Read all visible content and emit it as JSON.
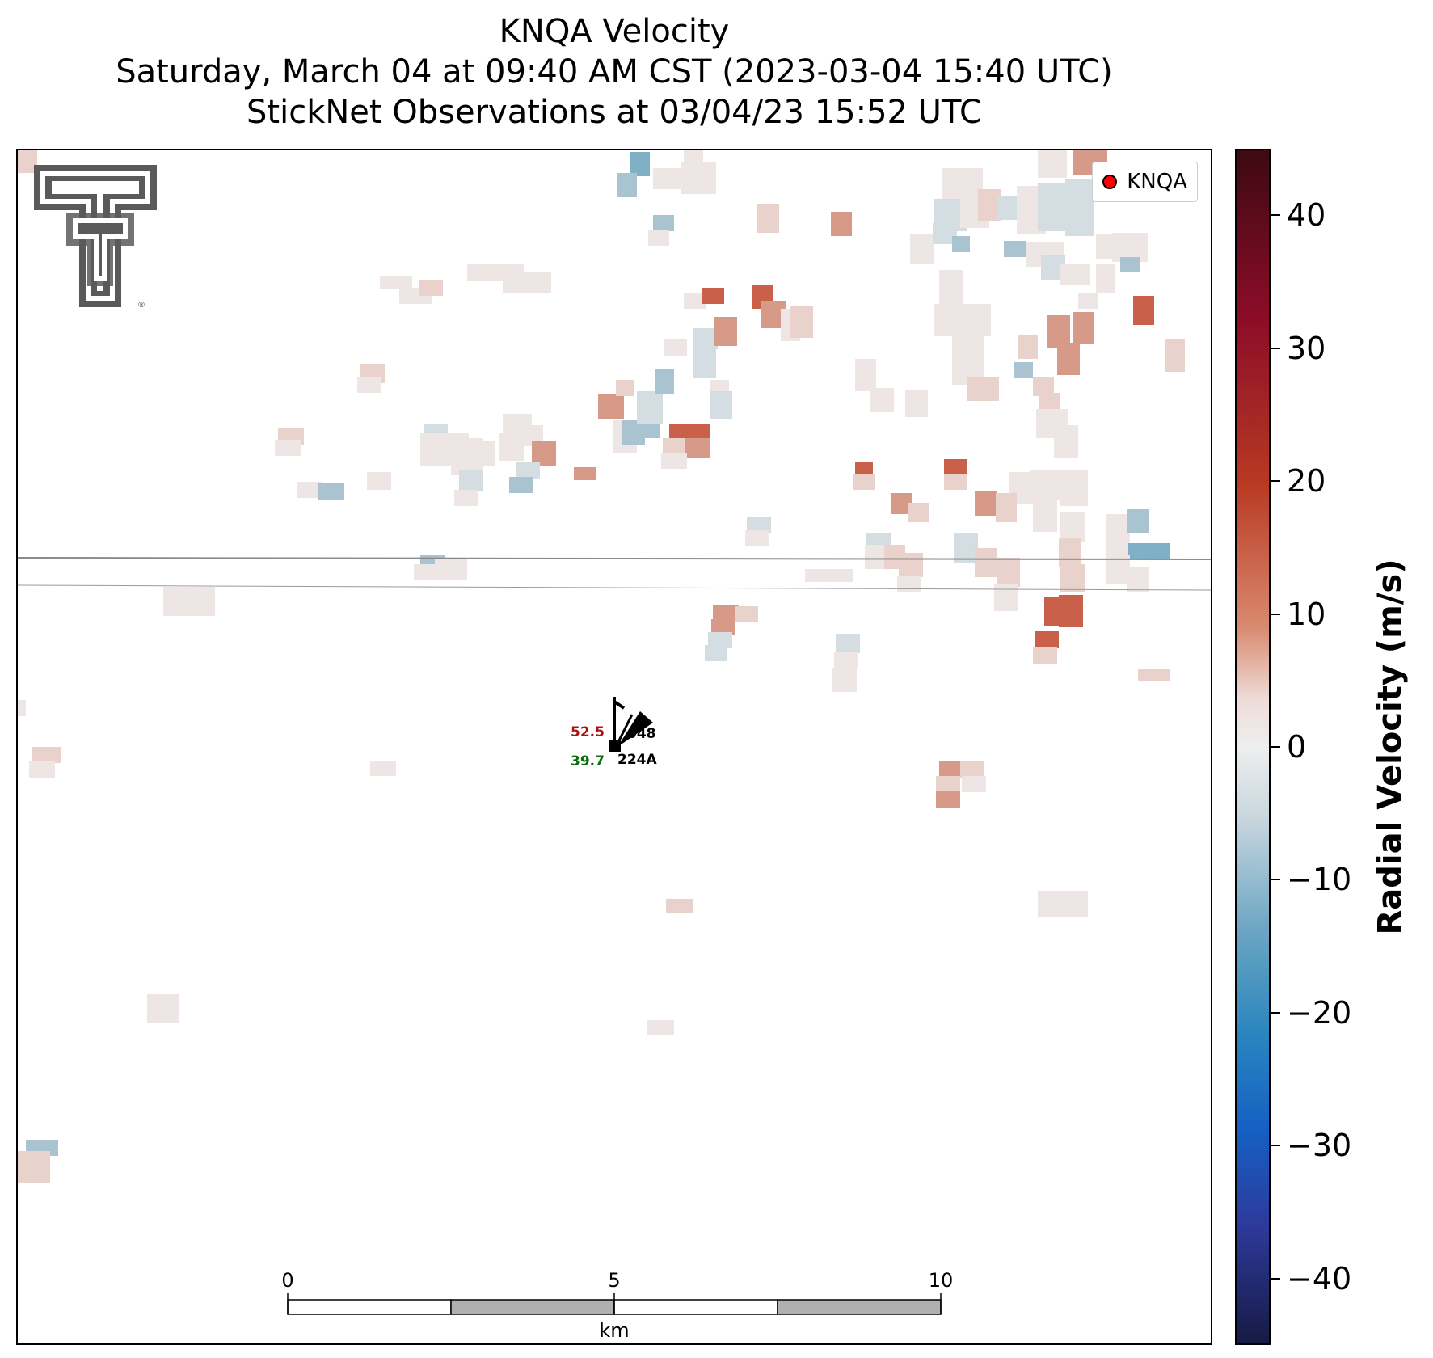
{
  "title": {
    "line1": "KNQA Velocity",
    "line2": "Saturday, March 04 at 09:40 AM CST (2023-03-04 15:40 UTC)",
    "line3": "StickNet Observations at 03/04/23 15:52 UTC"
  },
  "legend": {
    "label": "KNQA",
    "marker_color": "#ff0000"
  },
  "station": {
    "id": "224A",
    "temperature": "52.5",
    "dewpoint": "39.7",
    "pressure_code": "048",
    "temperature_color": "#b01010",
    "dewpoint_color": "#0a6e0a"
  },
  "scale_bar": {
    "ticks": [
      "0",
      "5",
      "10"
    ],
    "unit": "km",
    "fill_colors": [
      "#ffffff",
      "#b0b0b0"
    ]
  },
  "colorbar": {
    "label": "Radial Velocity (m/s)",
    "ticks": [
      "40",
      "30",
      "20",
      "10",
      "0",
      "−10",
      "−20",
      "−30",
      "−40"
    ],
    "range": [
      -45,
      45
    ],
    "colormap": [
      "#161a44",
      "#2d3a9c",
      "#1560c4",
      "#2a86be",
      "#6fa7c4",
      "#c8d6de",
      "#eeeeee",
      "#eedcd8",
      "#d98a70",
      "#b83a22",
      "#8c0c28",
      "#3c0a12"
    ]
  },
  "logo": {
    "name": "Texas Tech Double T",
    "mark": "®"
  },
  "palette": {
    "strong_pos": "#c8604a",
    "mid_pos": "#d89a88",
    "weak_pos": "#ead2cc",
    "near_zero": "#eee6e4",
    "weak_neg": "#d4dde2",
    "mid_neg": "#a9c3d0",
    "strong_neg": "#7fb0c6"
  }
}
